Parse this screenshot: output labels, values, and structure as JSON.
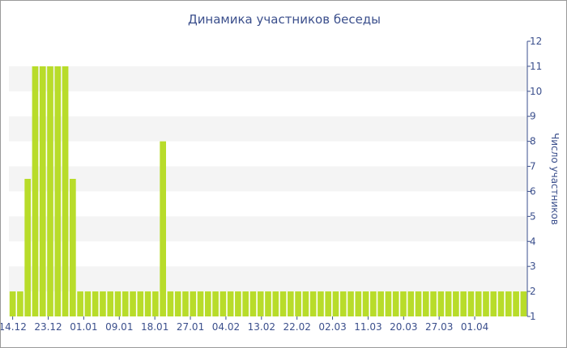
{
  "chart_data": {
    "type": "bar",
    "title": "Динамика участников беседы",
    "ylabel": "Число участников",
    "xlabel": "",
    "ylim": [
      1,
      12
    ],
    "y_ticks": [
      1,
      2,
      3,
      4,
      5,
      6,
      7,
      8,
      9,
      10,
      11,
      12
    ],
    "y_axis_side": "right",
    "x_tick_labels": [
      "14.12",
      "23.12",
      "01.01",
      "09.01",
      "18.01",
      "27.01",
      "04.02",
      "13.02",
      "22.02",
      "02.03",
      "11.03",
      "20.03",
      "27.03",
      "01.04"
    ],
    "grid": "alternating horizontal bands",
    "colors": {
      "bar": "#b8dc2a",
      "band": "#f4f4f4",
      "axis": "#3b4f8c"
    },
    "values": [
      2,
      2,
      6.5,
      11,
      11,
      11,
      11,
      11,
      6.5,
      2,
      2,
      2,
      2,
      2,
      2,
      2,
      2,
      2,
      2,
      2,
      8,
      2,
      2,
      2,
      2,
      2,
      2,
      2,
      2,
      2,
      2,
      2,
      2,
      2,
      2,
      2,
      2,
      2,
      2,
      2,
      2,
      2,
      2,
      2,
      2,
      2,
      2,
      2,
      2,
      2,
      2,
      2,
      2,
      2,
      2,
      2,
      2,
      2,
      2,
      2,
      2,
      2,
      2,
      2,
      2,
      2,
      2,
      2,
      2
    ]
  }
}
